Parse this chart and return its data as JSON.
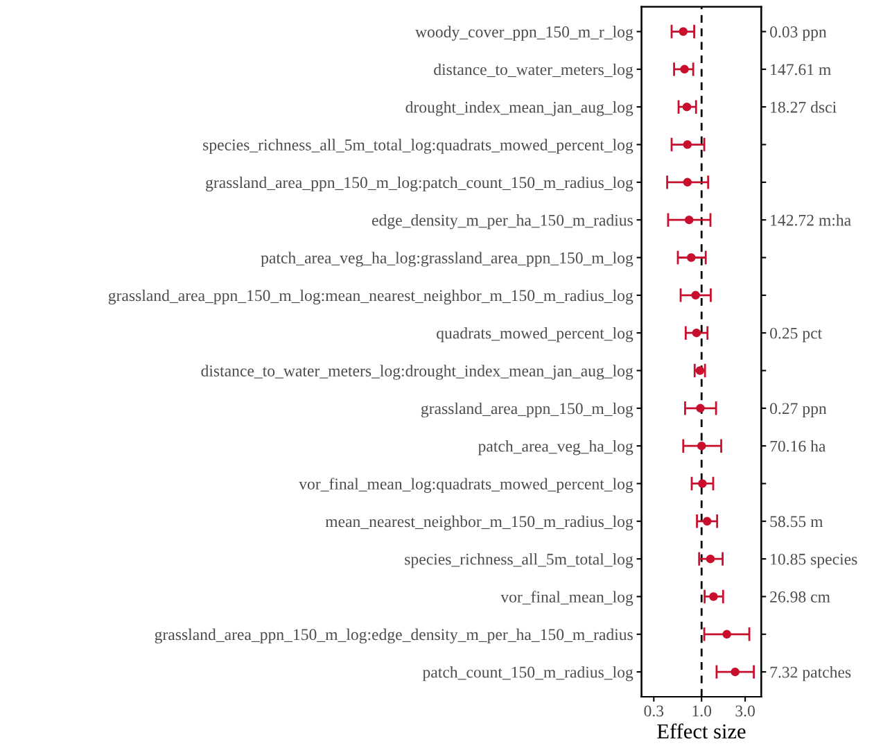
{
  "chart_data": {
    "type": "scatter",
    "orientation": "horizontal",
    "xlabel": "Effect size",
    "log": "x",
    "categories": [
      "woody_cover_ppn_150_m_r_log",
      "distance_to_water_meters_log",
      "drought_index_mean_jan_aug_log",
      "species_richness_all_5m_total_log:quadrats_mowed_percent_log",
      "grassland_area_ppn_150_m_log:patch_count_150_m_radius_log",
      "edge_density_m_per_ha_150_m_radius",
      "patch_area_veg_ha_log:grassland_area_ppn_150_m_log",
      "grassland_area_ppn_150_m_log:mean_nearest_neighbor_m_150_m_radius_log",
      "quadrats_mowed_percent_log",
      "distance_to_water_meters_log:drought_index_mean_jan_aug_log",
      "grassland_area_ppn_150_m_log",
      "patch_area_veg_ha_log",
      "vor_final_mean_log:quadrats_mowed_percent_log",
      "mean_nearest_neighbor_m_150_m_radius_log",
      "species_richness_all_5m_total_log",
      "vor_final_mean_log",
      "grassland_area_ppn_150_m_log:edge_density_m_per_ha_150_m_radius",
      "patch_count_150_m_radius_log"
    ],
    "y2_categories": [
      "0.03 ppn",
      "147.61 m",
      "18.27 dsci",
      null,
      null,
      "142.72 m:ha",
      null,
      null,
      "0.25 pct",
      null,
      "0.27 ppn",
      "70.16 ha",
      null,
      "58.55 m",
      "10.85 species",
      "26.98 cm",
      null,
      "7.32 patches"
    ],
    "series": [
      {
        "color": "#c8102e",
        "marker": "circle",
        "values": [
          0.63,
          0.65,
          0.69,
          0.7,
          0.7,
          0.73,
          0.77,
          0.86,
          0.88,
          0.96,
          0.97,
          1.0,
          1.02,
          1.15,
          1.25,
          1.35,
          1.89,
          2.33
        ],
        "errors": [
          [
            0.47,
            0.83
          ],
          [
            0.5,
            0.81
          ],
          [
            0.56,
            0.87
          ],
          [
            0.47,
            1.07
          ],
          [
            0.42,
            1.18
          ],
          [
            0.43,
            1.25
          ],
          [
            0.55,
            1.11
          ],
          [
            0.59,
            1.26
          ],
          [
            0.67,
            1.16
          ],
          [
            0.84,
            1.09
          ],
          [
            0.66,
            1.44
          ],
          [
            0.63,
            1.64
          ],
          [
            0.78,
            1.34
          ],
          [
            0.89,
            1.48
          ],
          [
            0.94,
            1.7
          ],
          [
            1.08,
            1.72
          ],
          [
            1.07,
            3.33
          ],
          [
            1.46,
            3.73
          ]
        ]
      }
    ],
    "xlim": [
      0.22,
      4.5
    ],
    "xticks": [
      0.3,
      {
        "value": 1,
        "label": "1.0"
      },
      {
        "value": 3,
        "label": "3.0"
      }
    ],
    "ref_lines": [
      {
        "axis": "x",
        "value": 1,
        "color": "#000000",
        "line_style": "dashed"
      }
    ],
    "grid": false,
    "legend": false
  }
}
